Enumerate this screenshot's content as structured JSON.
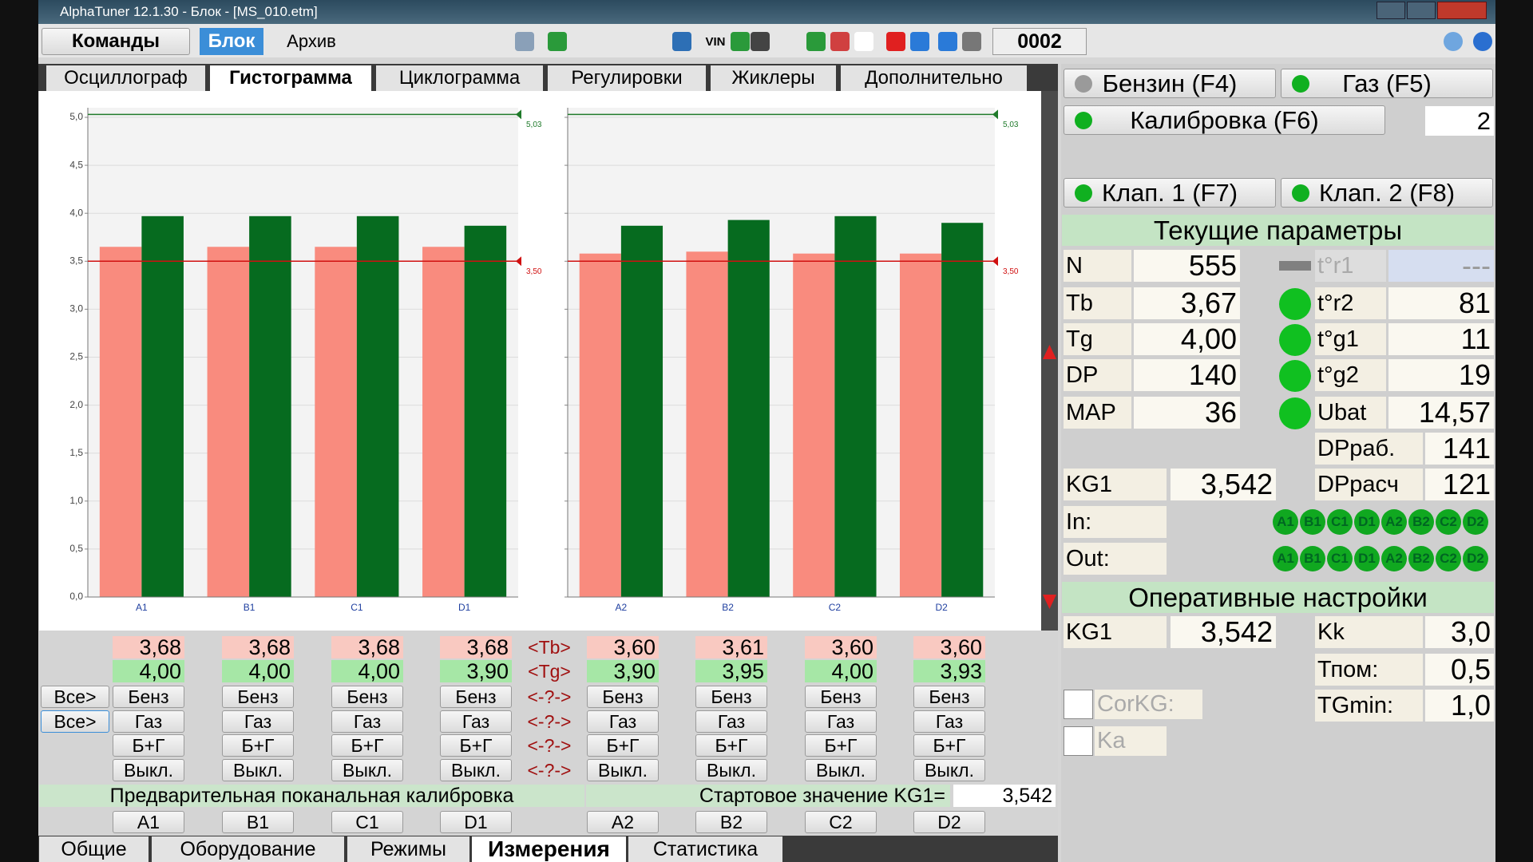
{
  "window": {
    "title": "AlphaTuner 12.1.30 - Блок - [MS_010.etm]"
  },
  "toolbar": {
    "tabs": [
      "Команды",
      "Блок",
      "Архив"
    ],
    "vin": "VIN",
    "counter": "0002"
  },
  "tabs": [
    "Осциллограф",
    "Гистограмма",
    "Циклограмма",
    "Регулировки",
    "Жиклеры",
    "Дополнительно"
  ],
  "chart_data": [
    {
      "type": "bar",
      "categories": [
        "A1",
        "B1",
        "C1",
        "D1"
      ],
      "series": [
        {
          "color": "#f98b7e",
          "values": [
            3.65,
            3.65,
            3.65,
            3.65
          ]
        },
        {
          "color": "#066b1f",
          "values": [
            3.97,
            3.97,
            3.97,
            3.87
          ]
        }
      ],
      "ylim": [
        0,
        5
      ],
      "yticks": [
        {
          "value": 0,
          "label": "0,0"
        },
        {
          "value": 0.5,
          "label": "0,5"
        },
        {
          "value": 1,
          "label": "1,0"
        },
        {
          "value": 1.5,
          "label": "1,5"
        },
        {
          "value": 2,
          "label": "2,0"
        },
        {
          "value": 2.5,
          "label": "2,5"
        },
        {
          "value": 3,
          "label": "3,0"
        },
        {
          "value": 3.5,
          "label": "3,5"
        },
        {
          "value": 4,
          "label": "4,0"
        },
        {
          "value": 4.5,
          "label": "4,5"
        },
        {
          "value": 5,
          "label": "5,0"
        }
      ],
      "reference_lines": [
        {
          "value": 3.5,
          "label": "3,50",
          "color": "#d01010"
        },
        {
          "value": 5.03,
          "label": "5,03",
          "color": "#1f7a2a"
        }
      ]
    },
    {
      "type": "bar",
      "categories": [
        "A2",
        "B2",
        "C2",
        "D2"
      ],
      "series": [
        {
          "color": "#f98b7e",
          "values": [
            3.58,
            3.6,
            3.58,
            3.58
          ]
        },
        {
          "color": "#066b1f",
          "values": [
            3.87,
            3.93,
            3.97,
            3.9
          ]
        }
      ],
      "ylim": [
        0,
        5
      ],
      "yticks": [
        0,
        0.5,
        1,
        1.5,
        2,
        2.5,
        3,
        3.5,
        4,
        4.5,
        5
      ],
      "reference_lines": [
        {
          "value": 3.5,
          "label": "3,50",
          "color": "#d01010"
        },
        {
          "value": 5.03,
          "label": "5,03",
          "color": "#1f7a2a"
        }
      ]
    }
  ],
  "channels": {
    "tb_label": "<Tb>",
    "tg_label": "<Tg>",
    "unknown": "<-?->",
    "all": "Все>",
    "buttons": [
      "Бенз",
      "Газ",
      "Б+Г",
      "Выкл."
    ],
    "columns": [
      {
        "name": "A1",
        "tb": "3,68",
        "tg": "4,00"
      },
      {
        "name": "B1",
        "tb": "3,68",
        "tg": "4,00"
      },
      {
        "name": "C1",
        "tb": "3,68",
        "tg": "4,00"
      },
      {
        "name": "D1",
        "tb": "3,68",
        "tg": "3,90"
      },
      {
        "name": "A2",
        "tb": "3,60",
        "tg": "3,90"
      },
      {
        "name": "B2",
        "tb": "3,61",
        "tg": "3,95"
      },
      {
        "name": "C2",
        "tb": "3,60",
        "tg": "4,00"
      },
      {
        "name": "D2",
        "tb": "3,60",
        "tg": "3,93"
      }
    ]
  },
  "calibration": {
    "label": "Предварительная поканальная калибровка",
    "start_label": "Стартовое значение KG1=",
    "start_value": "3,542"
  },
  "bottom_tabs": [
    "Общие",
    "Оборудование",
    "Режимы",
    "Измерения",
    "Статистика"
  ],
  "modes": {
    "petrol": "Бензин (F4)",
    "gas": "Газ (F5)",
    "calibration": "Калибровка (F6)",
    "calibration_value": "2",
    "valve1": "Клап. 1 (F7)",
    "valve2": "Клап. 2 (F8)"
  },
  "current": {
    "title": "Текущие параметры",
    "left": [
      [
        "N",
        "555"
      ],
      [
        "Tb",
        "3,67"
      ],
      [
        "Tg",
        "4,00"
      ],
      [
        "DP",
        "140"
      ],
      [
        "MAP",
        "36"
      ]
    ],
    "right": [
      [
        "t°r1",
        "---"
      ],
      [
        "t°r2",
        "81"
      ],
      [
        "t°g1",
        "11"
      ],
      [
        "t°g2",
        "19"
      ],
      [
        "Ubat",
        "14,57"
      ],
      [
        "DPраб.",
        "141"
      ],
      [
        "DPрасч",
        "121"
      ]
    ],
    "kg1": [
      "KG1",
      "3,542"
    ],
    "in": "In:",
    "out": "Out:",
    "injectors": [
      "A1",
      "B1",
      "C1",
      "D1",
      "A2",
      "B2",
      "C2",
      "D2"
    ]
  },
  "settings": {
    "title": "Оперативные настройки",
    "kg1": [
      "KG1",
      "3,542"
    ],
    "right": [
      [
        "Kk",
        "3,0"
      ],
      [
        "Тпом:",
        "0,5"
      ],
      [
        "TGmin:",
        "1,0"
      ]
    ],
    "corkg": "CorKG:",
    "ka": "Ka"
  }
}
